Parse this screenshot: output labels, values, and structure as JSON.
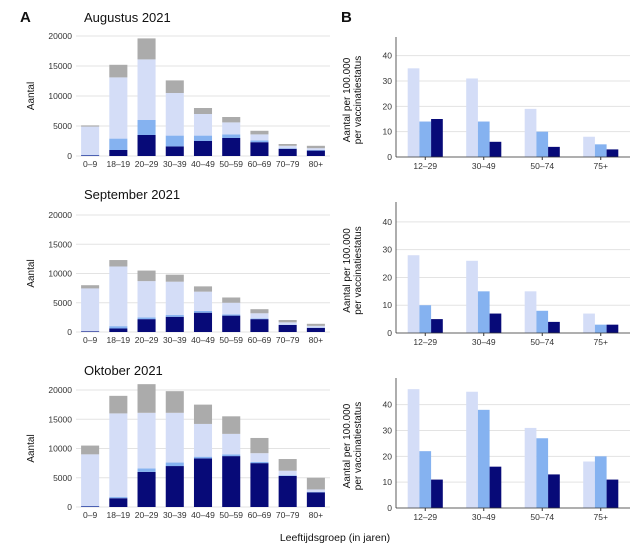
{
  "figure": {
    "panel_labels": [
      "A",
      "B"
    ],
    "xlabel": "Leeftijdsgroep (in jaren)"
  },
  "colors": {
    "seg_light": "#d4ddf7",
    "seg_mid": "#85b2f0",
    "seg_dark": "#070a78",
    "seg_grey": "#ababab",
    "bar_light": "#d4ddf7",
    "bar_mid": "#85b2f0",
    "bar_dark": "#070a78",
    "grid": "#e3e3e3",
    "axis": "#333333"
  },
  "chart_data": [
    {
      "type": "bar",
      "stacked": true,
      "title": "Augustus 2021",
      "ylabel": "Aantal",
      "ylim": [
        0,
        20000
      ],
      "yticks": [
        0,
        5000,
        10000,
        15000,
        20000
      ],
      "categories": [
        "0–9",
        "18–19",
        "20–29",
        "30–39",
        "40–49",
        "50–59",
        "60–69",
        "70–79",
        "80+"
      ],
      "category_tick_labels": [
        "0–9",
        "18–19",
        "20–29",
        "30–39",
        "40–49",
        "50–59",
        "60–69",
        "70–79",
        "80+"
      ],
      "series": [
        {
          "color_key": "seg_dark",
          "values": [
            100,
            1000,
            3500,
            1600,
            2500,
            3000,
            2300,
            1200,
            900
          ]
        },
        {
          "color_key": "seg_mid",
          "values": [
            100,
            1900,
            2500,
            1800,
            900,
            600,
            300,
            100,
            100
          ]
        },
        {
          "color_key": "seg_light",
          "values": [
            4700,
            10200,
            10100,
            7100,
            3600,
            2000,
            1000,
            400,
            300
          ]
        },
        {
          "color_key": "seg_grey",
          "values": [
            200,
            2100,
            3500,
            2100,
            1000,
            900,
            600,
            300,
            400
          ]
        }
      ]
    },
    {
      "type": "bar",
      "title": "",
      "ylabel": "Aantal per 100.000 per vaccinatiestatus",
      "ylim": [
        0,
        45
      ],
      "yticks": [
        0,
        10,
        20,
        30,
        40
      ],
      "categories": [
        "12–29",
        "30–49",
        "50–74",
        "75+"
      ],
      "series": [
        {
          "color_key": "bar_light",
          "values": [
            35,
            31,
            19,
            8
          ]
        },
        {
          "color_key": "bar_mid",
          "values": [
            14,
            14,
            10,
            5
          ]
        },
        {
          "color_key": "bar_dark",
          "values": [
            15,
            6,
            4,
            3
          ]
        }
      ]
    },
    {
      "type": "bar",
      "stacked": true,
      "title": "September 2021",
      "ylabel": "Aantal",
      "ylim": [
        0,
        20000
      ],
      "yticks": [
        0,
        5000,
        10000,
        15000,
        20000
      ],
      "categories": [
        "0–9",
        "18–19",
        "20–29",
        "30–39",
        "40–49",
        "50–59",
        "60–69",
        "70–79",
        "80+"
      ],
      "category_tick_labels": [
        "0–9",
        "18–19",
        "20–29",
        "30–39",
        "40–49",
        "50–59",
        "60–69",
        "70–79",
        "80+"
      ],
      "series": [
        {
          "color_key": "seg_dark",
          "values": [
            100,
            600,
            2200,
            2600,
            3300,
            2800,
            2200,
            1200,
            700
          ]
        },
        {
          "color_key": "seg_mid",
          "values": [
            50,
            400,
            300,
            300,
            300,
            200,
            100,
            50,
            50
          ]
        },
        {
          "color_key": "seg_light",
          "values": [
            7300,
            10200,
            6200,
            5700,
            3300,
            2000,
            900,
            400,
            300
          ]
        },
        {
          "color_key": "seg_grey",
          "values": [
            550,
            1100,
            1800,
            1200,
            900,
            900,
            700,
            400,
            350
          ]
        }
      ]
    },
    {
      "type": "bar",
      "title": "",
      "ylabel": "Aantal per 100.000 per vaccinatiestatus",
      "ylim": [
        0,
        45
      ],
      "yticks": [
        0,
        10,
        20,
        30,
        40
      ],
      "categories": [
        "12–29",
        "30–49",
        "50–74",
        "75+"
      ],
      "series": [
        {
          "color_key": "bar_light",
          "values": [
            28,
            26,
            15,
            7
          ]
        },
        {
          "color_key": "bar_mid",
          "values": [
            10,
            15,
            8,
            3
          ]
        },
        {
          "color_key": "bar_dark",
          "values": [
            5,
            7,
            4,
            3
          ]
        }
      ]
    },
    {
      "type": "bar",
      "stacked": true,
      "title": "Oktober 2021",
      "ylabel": "Aantal",
      "ylim": [
        0,
        20000
      ],
      "yticks": [
        0,
        5000,
        10000,
        15000,
        20000
      ],
      "categories": [
        "0–9",
        "18–19",
        "20–29",
        "30–39",
        "40–49",
        "50–59",
        "60–69",
        "70–79",
        "80+"
      ],
      "category_tick_labels": [
        "0–9",
        "18–19",
        "20–29",
        "30–39",
        "40–49",
        "50–59",
        "60–69",
        "70–79",
        "80+"
      ],
      "series": [
        {
          "color_key": "seg_dark",
          "values": [
            100,
            1500,
            6000,
            7000,
            8300,
            8700,
            7500,
            5300,
            2500
          ]
        },
        {
          "color_key": "seg_mid",
          "values": [
            100,
            200,
            600,
            600,
            300,
            300,
            200,
            100,
            100
          ]
        },
        {
          "color_key": "seg_light",
          "values": [
            8800,
            14300,
            9500,
            8500,
            5600,
            3500,
            1500,
            800,
            400
          ]
        },
        {
          "color_key": "seg_grey",
          "values": [
            1500,
            3000,
            4900,
            3700,
            3300,
            3000,
            2600,
            2000,
            2000
          ]
        }
      ]
    },
    {
      "type": "bar",
      "title": "",
      "ylabel": "Aantal per 100.000 per vaccinatiestatus",
      "ylim": [
        0,
        48
      ],
      "yticks": [
        0,
        10,
        20,
        30,
        40
      ],
      "categories": [
        "12–29",
        "30–49",
        "50–74",
        "75+"
      ],
      "series": [
        {
          "color_key": "bar_light",
          "values": [
            46,
            45,
            31,
            18
          ]
        },
        {
          "color_key": "bar_mid",
          "values": [
            22,
            38,
            27,
            20
          ]
        },
        {
          "color_key": "bar_dark",
          "values": [
            11,
            16,
            13,
            11
          ]
        }
      ]
    }
  ]
}
